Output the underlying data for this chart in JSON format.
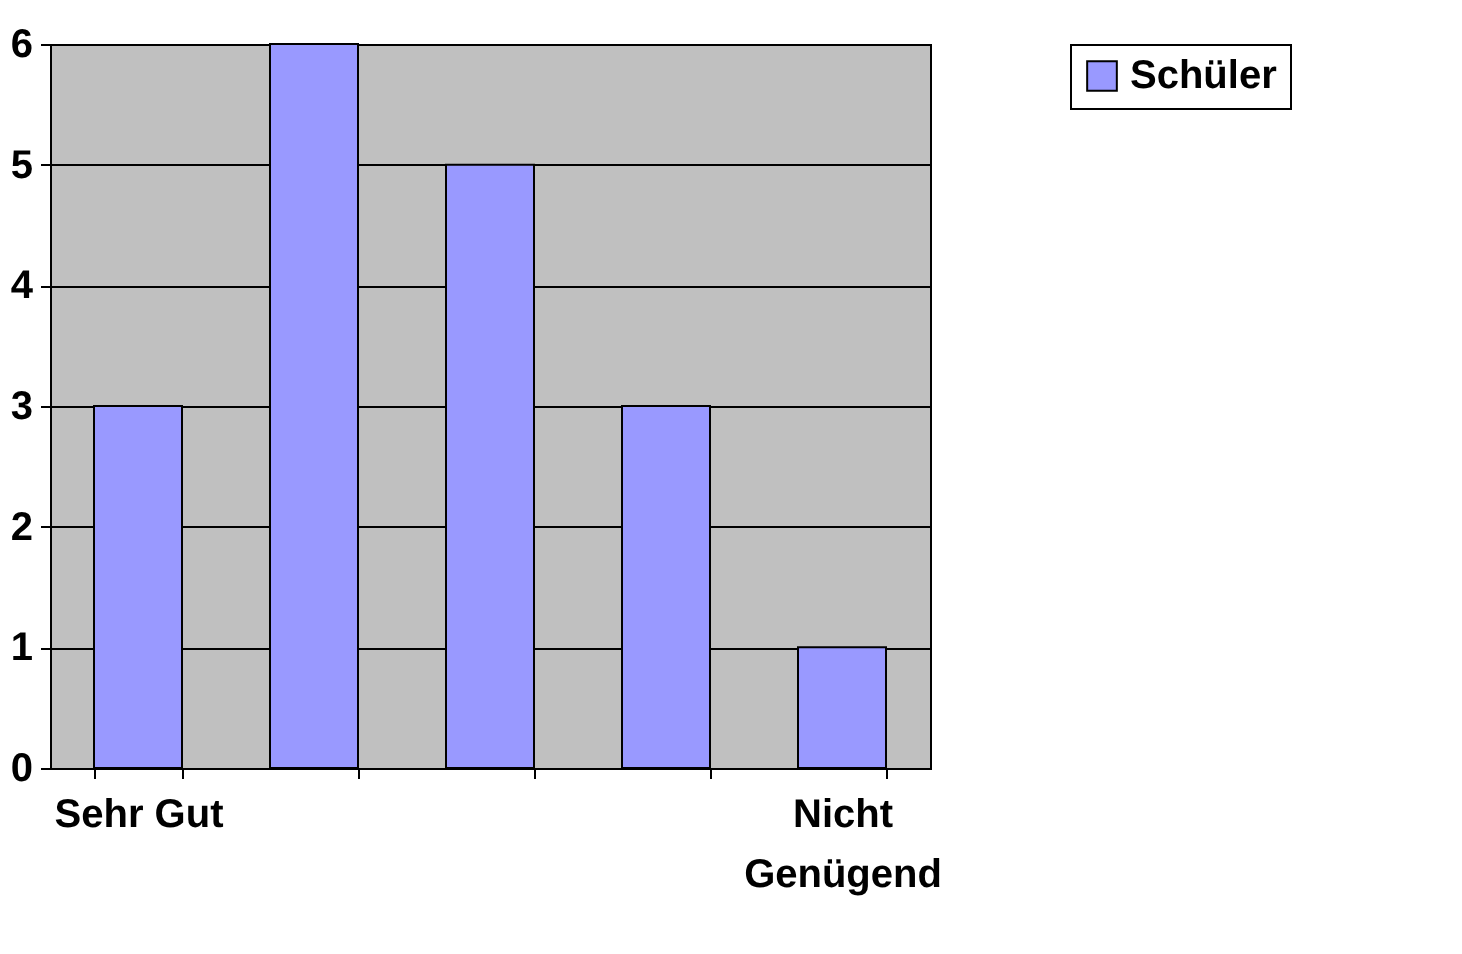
{
  "chart_data": {
    "type": "bar",
    "categories": [
      "Sehr Gut",
      null,
      null,
      null,
      "Nicht Genügend"
    ],
    "series": [
      {
        "name": "Schüler",
        "color": "#9999ff",
        "values": [
          3,
          6,
          5,
          3,
          1
        ]
      }
    ],
    "ylim": [
      0,
      6
    ],
    "yticks": [
      0,
      1,
      2,
      3,
      4,
      5,
      6
    ],
    "grid": true,
    "legend": "right"
  }
}
